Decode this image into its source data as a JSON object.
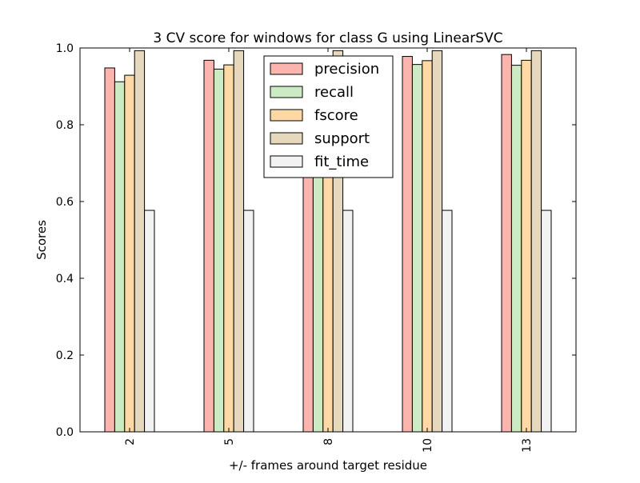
{
  "chart_data": {
    "type": "bar",
    "title": "3 CV score for windows for class G using LinearSVC",
    "xlabel": "+/- frames around target residue",
    "ylabel": "Scores",
    "categories": [
      "2",
      "5",
      "8",
      "10",
      "13"
    ],
    "ylim": [
      0,
      1.0
    ],
    "yticks": [
      "0.0",
      "0.2",
      "0.4",
      "0.6",
      "0.8",
      "1.0"
    ],
    "grid": false,
    "legend_position": "top-center",
    "series": [
      {
        "name": "precision",
        "color": "#fbb4ae",
        "values": [
          0.948,
          0.968,
          0.975,
          0.978,
          0.983
        ]
      },
      {
        "name": "recall",
        "color": "#ccebc5",
        "values": [
          0.912,
          0.945,
          0.95,
          0.957,
          0.955
        ]
      },
      {
        "name": "fscore",
        "color": "#fed9a6",
        "values": [
          0.929,
          0.956,
          0.962,
          0.967,
          0.968
        ]
      },
      {
        "name": "support",
        "color": "#e5d8bd",
        "values": [
          0.993,
          0.993,
          0.993,
          0.993,
          0.993
        ]
      },
      {
        "name": "fit_time",
        "color": "#f2f2f2",
        "values": [
          0.577,
          0.577,
          0.577,
          0.577,
          0.577
        ]
      }
    ]
  }
}
